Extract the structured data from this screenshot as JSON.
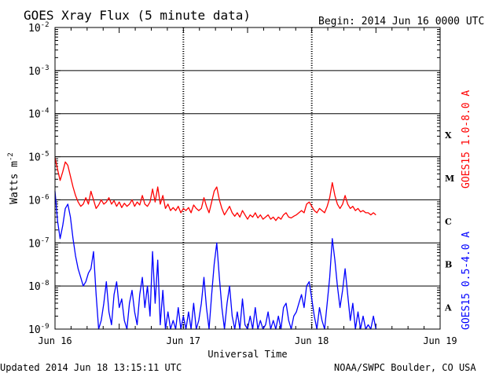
{
  "chart_data": {
    "type": "line",
    "title": "GOES Xray Flux (5 minute data)",
    "begin": "Begin:  2014 Jun 16 0000 UTC",
    "xlabel": "Universal Time",
    "ylabel": "Watts m",
    "ylabel_sup": "-2",
    "updated": "Updated 2014 Jun 18 13:15:11 UTC",
    "source": "NOAA/SWPC Boulder, CO USA",
    "x_range_days": [
      0,
      3
    ],
    "x_ticks": [
      {
        "day": 0,
        "label": "Jun 16"
      },
      {
        "day": 1,
        "label": "Jun 17"
      },
      {
        "day": 2,
        "label": "Jun 18"
      },
      {
        "day": 3,
        "label": "Jun 19"
      }
    ],
    "y_scale": "log",
    "y_range_exp": [
      -9,
      -2
    ],
    "y_ticks": [
      {
        "exp": -9,
        "label": "10",
        "sup": "-9"
      },
      {
        "exp": -8,
        "label": "10",
        "sup": "-8"
      },
      {
        "exp": -7,
        "label": "10",
        "sup": "-7"
      },
      {
        "exp": -6,
        "label": "10",
        "sup": "-6"
      },
      {
        "exp": -5,
        "label": "10",
        "sup": "-5"
      },
      {
        "exp": -4,
        "label": "10",
        "sup": "-4"
      },
      {
        "exp": -3,
        "label": "10",
        "sup": "-3"
      },
      {
        "exp": -2,
        "label": "10",
        "sup": "-2"
      }
    ],
    "flare_classes": [
      {
        "label": "X",
        "exp": -4
      },
      {
        "label": "M",
        "exp": -5
      },
      {
        "label": "C",
        "exp": -6
      },
      {
        "label": "B",
        "exp": -7
      },
      {
        "label": "A",
        "exp": -8
      }
    ],
    "series": [
      {
        "name": "GOES15 1.0-8.0 A",
        "color": "#ff0000",
        "points": [
          [
            0.0,
            -5.02
          ],
          [
            0.02,
            -5.3
          ],
          [
            0.04,
            -5.55
          ],
          [
            0.06,
            -5.35
          ],
          [
            0.08,
            -5.12
          ],
          [
            0.1,
            -5.2
          ],
          [
            0.12,
            -5.45
          ],
          [
            0.14,
            -5.7
          ],
          [
            0.16,
            -5.9
          ],
          [
            0.18,
            -6.05
          ],
          [
            0.2,
            -6.15
          ],
          [
            0.22,
            -6.1
          ],
          [
            0.24,
            -5.95
          ],
          [
            0.26,
            -6.1
          ],
          [
            0.28,
            -5.8
          ],
          [
            0.3,
            -6.0
          ],
          [
            0.32,
            -6.2
          ],
          [
            0.34,
            -6.12
          ],
          [
            0.36,
            -6.0
          ],
          [
            0.38,
            -6.1
          ],
          [
            0.4,
            -6.05
          ],
          [
            0.42,
            -5.95
          ],
          [
            0.44,
            -6.1
          ],
          [
            0.46,
            -6.02
          ],
          [
            0.48,
            -6.15
          ],
          [
            0.5,
            -6.05
          ],
          [
            0.52,
            -6.18
          ],
          [
            0.54,
            -6.08
          ],
          [
            0.56,
            -6.15
          ],
          [
            0.58,
            -6.1
          ],
          [
            0.6,
            -6.0
          ],
          [
            0.62,
            -6.15
          ],
          [
            0.64,
            -6.05
          ],
          [
            0.66,
            -6.12
          ],
          [
            0.68,
            -5.9
          ],
          [
            0.7,
            -6.1
          ],
          [
            0.72,
            -6.15
          ],
          [
            0.74,
            -6.05
          ],
          [
            0.76,
            -5.75
          ],
          [
            0.78,
            -6.05
          ],
          [
            0.8,
            -5.7
          ],
          [
            0.82,
            -6.1
          ],
          [
            0.84,
            -5.9
          ],
          [
            0.86,
            -6.2
          ],
          [
            0.88,
            -6.1
          ],
          [
            0.9,
            -6.25
          ],
          [
            0.92,
            -6.18
          ],
          [
            0.94,
            -6.25
          ],
          [
            0.96,
            -6.15
          ],
          [
            0.98,
            -6.3
          ],
          [
            1.0,
            -6.2
          ],
          [
            1.02,
            -6.25
          ],
          [
            1.04,
            -6.18
          ],
          [
            1.06,
            -6.3
          ],
          [
            1.08,
            -6.12
          ],
          [
            1.1,
            -6.2
          ],
          [
            1.12,
            -6.25
          ],
          [
            1.14,
            -6.2
          ],
          [
            1.16,
            -5.95
          ],
          [
            1.18,
            -6.15
          ],
          [
            1.2,
            -6.3
          ],
          [
            1.22,
            -6.05
          ],
          [
            1.24,
            -5.8
          ],
          [
            1.26,
            -5.7
          ],
          [
            1.28,
            -6.0
          ],
          [
            1.3,
            -6.2
          ],
          [
            1.32,
            -6.35
          ],
          [
            1.34,
            -6.25
          ],
          [
            1.36,
            -6.15
          ],
          [
            1.38,
            -6.3
          ],
          [
            1.4,
            -6.38
          ],
          [
            1.42,
            -6.3
          ],
          [
            1.44,
            -6.4
          ],
          [
            1.46,
            -6.25
          ],
          [
            1.48,
            -6.35
          ],
          [
            1.5,
            -6.45
          ],
          [
            1.52,
            -6.35
          ],
          [
            1.54,
            -6.4
          ],
          [
            1.56,
            -6.3
          ],
          [
            1.58,
            -6.42
          ],
          [
            1.6,
            -6.35
          ],
          [
            1.62,
            -6.45
          ],
          [
            1.64,
            -6.4
          ],
          [
            1.66,
            -6.35
          ],
          [
            1.68,
            -6.45
          ],
          [
            1.7,
            -6.4
          ],
          [
            1.72,
            -6.48
          ],
          [
            1.74,
            -6.4
          ],
          [
            1.76,
            -6.45
          ],
          [
            1.78,
            -6.35
          ],
          [
            1.8,
            -6.3
          ],
          [
            1.82,
            -6.4
          ],
          [
            1.84,
            -6.42
          ],
          [
            1.86,
            -6.38
          ],
          [
            1.88,
            -6.35
          ],
          [
            1.9,
            -6.3
          ],
          [
            1.92,
            -6.25
          ],
          [
            1.94,
            -6.3
          ],
          [
            1.96,
            -6.1
          ],
          [
            1.98,
            -6.05
          ],
          [
            2.0,
            -6.15
          ],
          [
            2.02,
            -6.25
          ],
          [
            2.04,
            -6.3
          ],
          [
            2.06,
            -6.2
          ],
          [
            2.08,
            -6.25
          ],
          [
            2.1,
            -6.3
          ],
          [
            2.12,
            -6.15
          ],
          [
            2.14,
            -5.95
          ],
          [
            2.16,
            -5.6
          ],
          [
            2.18,
            -5.9
          ],
          [
            2.2,
            -6.1
          ],
          [
            2.22,
            -6.2
          ],
          [
            2.24,
            -6.1
          ],
          [
            2.26,
            -5.9
          ],
          [
            2.28,
            -6.1
          ],
          [
            2.3,
            -6.2
          ],
          [
            2.32,
            -6.15
          ],
          [
            2.34,
            -6.25
          ],
          [
            2.36,
            -6.2
          ],
          [
            2.38,
            -6.28
          ],
          [
            2.4,
            -6.25
          ],
          [
            2.42,
            -6.3
          ],
          [
            2.44,
            -6.3
          ],
          [
            2.46,
            -6.35
          ],
          [
            2.48,
            -6.3
          ],
          [
            2.5,
            -6.35
          ]
        ]
      },
      {
        "name": "GOES15 0.5-4.0 A",
        "color": "#0000ff",
        "points": [
          [
            0.0,
            -5.8
          ],
          [
            0.02,
            -6.5
          ],
          [
            0.04,
            -6.9
          ],
          [
            0.06,
            -6.6
          ],
          [
            0.08,
            -6.2
          ],
          [
            0.1,
            -6.1
          ],
          [
            0.12,
            -6.4
          ],
          [
            0.14,
            -6.9
          ],
          [
            0.16,
            -7.3
          ],
          [
            0.18,
            -7.6
          ],
          [
            0.2,
            -7.8
          ],
          [
            0.22,
            -8.0
          ],
          [
            0.24,
            -7.9
          ],
          [
            0.26,
            -7.7
          ],
          [
            0.28,
            -7.6
          ],
          [
            0.3,
            -7.2
          ],
          [
            0.32,
            -8.2
          ],
          [
            0.34,
            -9.0
          ],
          [
            0.36,
            -8.8
          ],
          [
            0.38,
            -8.4
          ],
          [
            0.4,
            -7.9
          ],
          [
            0.42,
            -8.6
          ],
          [
            0.44,
            -8.9
          ],
          [
            0.46,
            -8.2
          ],
          [
            0.48,
            -7.9
          ],
          [
            0.5,
            -8.5
          ],
          [
            0.52,
            -8.3
          ],
          [
            0.54,
            -8.8
          ],
          [
            0.56,
            -9.0
          ],
          [
            0.58,
            -8.4
          ],
          [
            0.6,
            -8.1
          ],
          [
            0.62,
            -8.6
          ],
          [
            0.64,
            -8.9
          ],
          [
            0.66,
            -8.2
          ],
          [
            0.68,
            -7.8
          ],
          [
            0.7,
            -8.5
          ],
          [
            0.72,
            -8.0
          ],
          [
            0.74,
            -8.7
          ],
          [
            0.76,
            -7.2
          ],
          [
            0.78,
            -8.4
          ],
          [
            0.8,
            -7.4
          ],
          [
            0.82,
            -8.9
          ],
          [
            0.84,
            -8.1
          ],
          [
            0.86,
            -9.0
          ],
          [
            0.88,
            -8.6
          ],
          [
            0.9,
            -9.0
          ],
          [
            0.92,
            -8.8
          ],
          [
            0.94,
            -9.0
          ],
          [
            0.96,
            -8.5
          ],
          [
            0.98,
            -9.0
          ],
          [
            1.0,
            -8.7
          ],
          [
            1.02,
            -9.0
          ],
          [
            1.04,
            -8.6
          ],
          [
            1.06,
            -9.0
          ],
          [
            1.08,
            -8.4
          ],
          [
            1.1,
            -9.0
          ],
          [
            1.12,
            -8.8
          ],
          [
            1.14,
            -8.4
          ],
          [
            1.16,
            -7.8
          ],
          [
            1.18,
            -8.5
          ],
          [
            1.2,
            -9.0
          ],
          [
            1.22,
            -8.2
          ],
          [
            1.24,
            -7.5
          ],
          [
            1.26,
            -7.0
          ],
          [
            1.28,
            -7.8
          ],
          [
            1.3,
            -8.5
          ],
          [
            1.32,
            -9.0
          ],
          [
            1.34,
            -8.4
          ],
          [
            1.36,
            -8.0
          ],
          [
            1.38,
            -8.7
          ],
          [
            1.4,
            -9.0
          ],
          [
            1.42,
            -8.6
          ],
          [
            1.44,
            -9.0
          ],
          [
            1.46,
            -8.3
          ],
          [
            1.48,
            -8.9
          ],
          [
            1.5,
            -9.0
          ],
          [
            1.52,
            -8.7
          ],
          [
            1.54,
            -9.0
          ],
          [
            1.56,
            -8.5
          ],
          [
            1.58,
            -9.0
          ],
          [
            1.6,
            -8.8
          ],
          [
            1.62,
            -9.0
          ],
          [
            1.64,
            -8.9
          ],
          [
            1.66,
            -8.6
          ],
          [
            1.68,
            -9.0
          ],
          [
            1.7,
            -8.8
          ],
          [
            1.72,
            -9.0
          ],
          [
            1.74,
            -8.7
          ],
          [
            1.76,
            -9.0
          ],
          [
            1.78,
            -8.5
          ],
          [
            1.8,
            -8.4
          ],
          [
            1.82,
            -8.8
          ],
          [
            1.84,
            -9.0
          ],
          [
            1.86,
            -8.7
          ],
          [
            1.88,
            -8.6
          ],
          [
            1.9,
            -8.4
          ],
          [
            1.92,
            -8.2
          ],
          [
            1.94,
            -8.5
          ],
          [
            1.96,
            -8.0
          ],
          [
            1.98,
            -7.9
          ],
          [
            2.0,
            -8.3
          ],
          [
            2.02,
            -8.7
          ],
          [
            2.04,
            -9.0
          ],
          [
            2.06,
            -8.5
          ],
          [
            2.08,
            -8.8
          ],
          [
            2.1,
            -9.0
          ],
          [
            2.12,
            -8.4
          ],
          [
            2.14,
            -7.8
          ],
          [
            2.16,
            -6.9
          ],
          [
            2.18,
            -7.4
          ],
          [
            2.2,
            -8.0
          ],
          [
            2.22,
            -8.5
          ],
          [
            2.24,
            -8.1
          ],
          [
            2.26,
            -7.6
          ],
          [
            2.28,
            -8.2
          ],
          [
            2.3,
            -8.8
          ],
          [
            2.32,
            -8.4
          ],
          [
            2.34,
            -9.0
          ],
          [
            2.36,
            -8.6
          ],
          [
            2.38,
            -9.0
          ],
          [
            2.4,
            -8.7
          ],
          [
            2.42,
            -9.0
          ],
          [
            2.44,
            -8.9
          ],
          [
            2.46,
            -9.0
          ],
          [
            2.48,
            -8.7
          ],
          [
            2.5,
            -9.0
          ]
        ]
      }
    ],
    "grid": true,
    "legend_placement": "right"
  }
}
